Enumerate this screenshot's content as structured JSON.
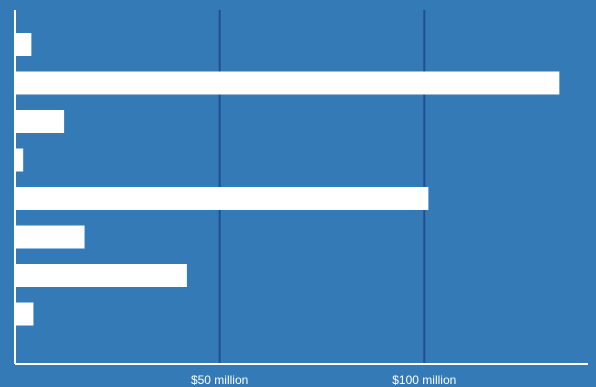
{
  "chart_data": {
    "type": "bar",
    "orientation": "horizontal",
    "categories": [
      "",
      "",
      "",
      "",
      "",
      "",
      "",
      ""
    ],
    "values": [
      4,
      133,
      12,
      2,
      101,
      17,
      42,
      4.5
    ],
    "xlim": [
      0,
      140
    ],
    "xticks": [
      50,
      100
    ],
    "xtick_labels": [
      "$50 million",
      "$100 million"
    ],
    "grid": true,
    "title": "",
    "xlabel": "",
    "ylabel": "",
    "colors": {
      "background": "#337ab7",
      "bar": "#ffffff",
      "gridline": "#1f4f8c",
      "axis": "#ffffff",
      "text": "#ffffff"
    }
  }
}
